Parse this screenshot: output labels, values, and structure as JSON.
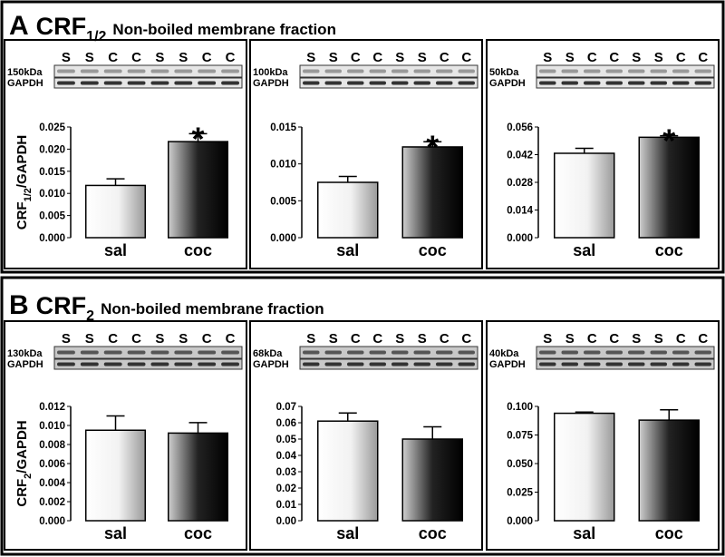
{
  "panels": [
    {
      "letter": "A",
      "title": "CRF",
      "subscript": "1/2",
      "subtitle": "Non-boiled membrane fraction"
    },
    {
      "letter": "B",
      "title": "CRF",
      "subscript": "2",
      "subtitle": "Non-boiled membrane fraction"
    }
  ],
  "chart_data": [
    {
      "type": "bar",
      "blot": {
        "lanes": [
          "S",
          "S",
          "C",
          "C",
          "S",
          "S",
          "C",
          "C"
        ],
        "band": "150kDa",
        "control": "GAPDH"
      },
      "ylabel": {
        "main": "CRF",
        "sub": "1/2",
        "tail": "/GAPDH"
      },
      "categories": [
        "sal",
        "coc"
      ],
      "values": [
        0.0118,
        0.0217
      ],
      "errors": [
        0.0015,
        0.0018
      ],
      "annotations": [
        null,
        "*"
      ],
      "ylim": [
        0,
        0.025
      ],
      "yticks": [
        {
          "value": 0,
          "label": "0.000"
        },
        0.005,
        {
          "value": 0.01,
          "label": "0.010"
        },
        0.015,
        {
          "value": 0.02,
          "label": "0.020"
        },
        0.025
      ]
    },
    {
      "type": "bar",
      "blot": {
        "lanes": [
          "S",
          "S",
          "C",
          "C",
          "S",
          "S",
          "C",
          "C"
        ],
        "band": "100kDa",
        "control": "GAPDH"
      },
      "categories": [
        "sal",
        "coc"
      ],
      "values": [
        0.0075,
        0.0123
      ],
      "errors": [
        0.0008,
        0.0007
      ],
      "annotations": [
        null,
        "*"
      ],
      "ylim": [
        0,
        0.015
      ],
      "yticks": [
        {
          "value": 0,
          "label": "0.000"
        },
        0.005,
        {
          "value": 0.01,
          "label": "0.010"
        },
        0.015
      ]
    },
    {
      "type": "bar",
      "blot": {
        "lanes": [
          "S",
          "S",
          "C",
          "C",
          "S",
          "S",
          "C",
          "C"
        ],
        "band": "50kDa",
        "control": "GAPDH"
      },
      "categories": [
        "sal",
        "coc"
      ],
      "values": [
        0.0427,
        0.0508
      ],
      "errors": [
        0.0025,
        0.0008
      ],
      "annotations": [
        null,
        "*"
      ],
      "ylim": [
        0,
        0.056
      ],
      "yticks": [
        {
          "value": 0,
          "label": "0.000"
        },
        0.014,
        0.028,
        0.042,
        0.056
      ]
    },
    {
      "type": "bar",
      "blot": {
        "lanes": [
          "S",
          "S",
          "C",
          "C",
          "S",
          "S",
          "C",
          "C"
        ],
        "band": "130kDa",
        "control": "GAPDH"
      },
      "ylabel": {
        "main": "CRF",
        "sub": "2",
        "tail": "/GAPDH"
      },
      "categories": [
        "sal",
        "coc"
      ],
      "values": [
        0.0095,
        0.0092
      ],
      "errors": [
        0.0015,
        0.0011
      ],
      "ylim": [
        0,
        0.012
      ],
      "yticks": [
        {
          "value": 0,
          "label": "0.000"
        },
        0.002,
        0.004,
        0.006,
        0.008,
        {
          "value": 0.01,
          "label": "0.010"
        },
        0.012
      ]
    },
    {
      "type": "bar",
      "blot": {
        "lanes": [
          "S",
          "S",
          "C",
          "C",
          "S",
          "S",
          "C",
          "C"
        ],
        "band": "68kDa",
        "control": "GAPDH"
      },
      "categories": [
        "sal",
        "coc"
      ],
      "values": [
        0.061,
        0.05
      ],
      "errors": [
        0.005,
        0.0075
      ],
      "ylim": [
        0,
        0.07
      ],
      "yticks": [
        {
          "value": 0,
          "label": "0.00"
        },
        0.01,
        0.02,
        0.03,
        0.04,
        0.05,
        0.06,
        0.07
      ]
    },
    {
      "type": "bar",
      "blot": {
        "lanes": [
          "S",
          "S",
          "C",
          "C",
          "S",
          "S",
          "C",
          "C"
        ],
        "band": "40kDa",
        "control": "GAPDH"
      },
      "categories": [
        "sal",
        "coc"
      ],
      "values": [
        0.094,
        0.088
      ],
      "errors": [
        0.001,
        0.009
      ],
      "ylim": [
        0,
        0.1
      ],
      "yticks": [
        {
          "value": 0,
          "label": "0.000"
        },
        0.025,
        {
          "value": 0.05,
          "label": "0.050"
        },
        0.075,
        {
          "value": 0.1,
          "label": "0.100"
        }
      ]
    }
  ]
}
